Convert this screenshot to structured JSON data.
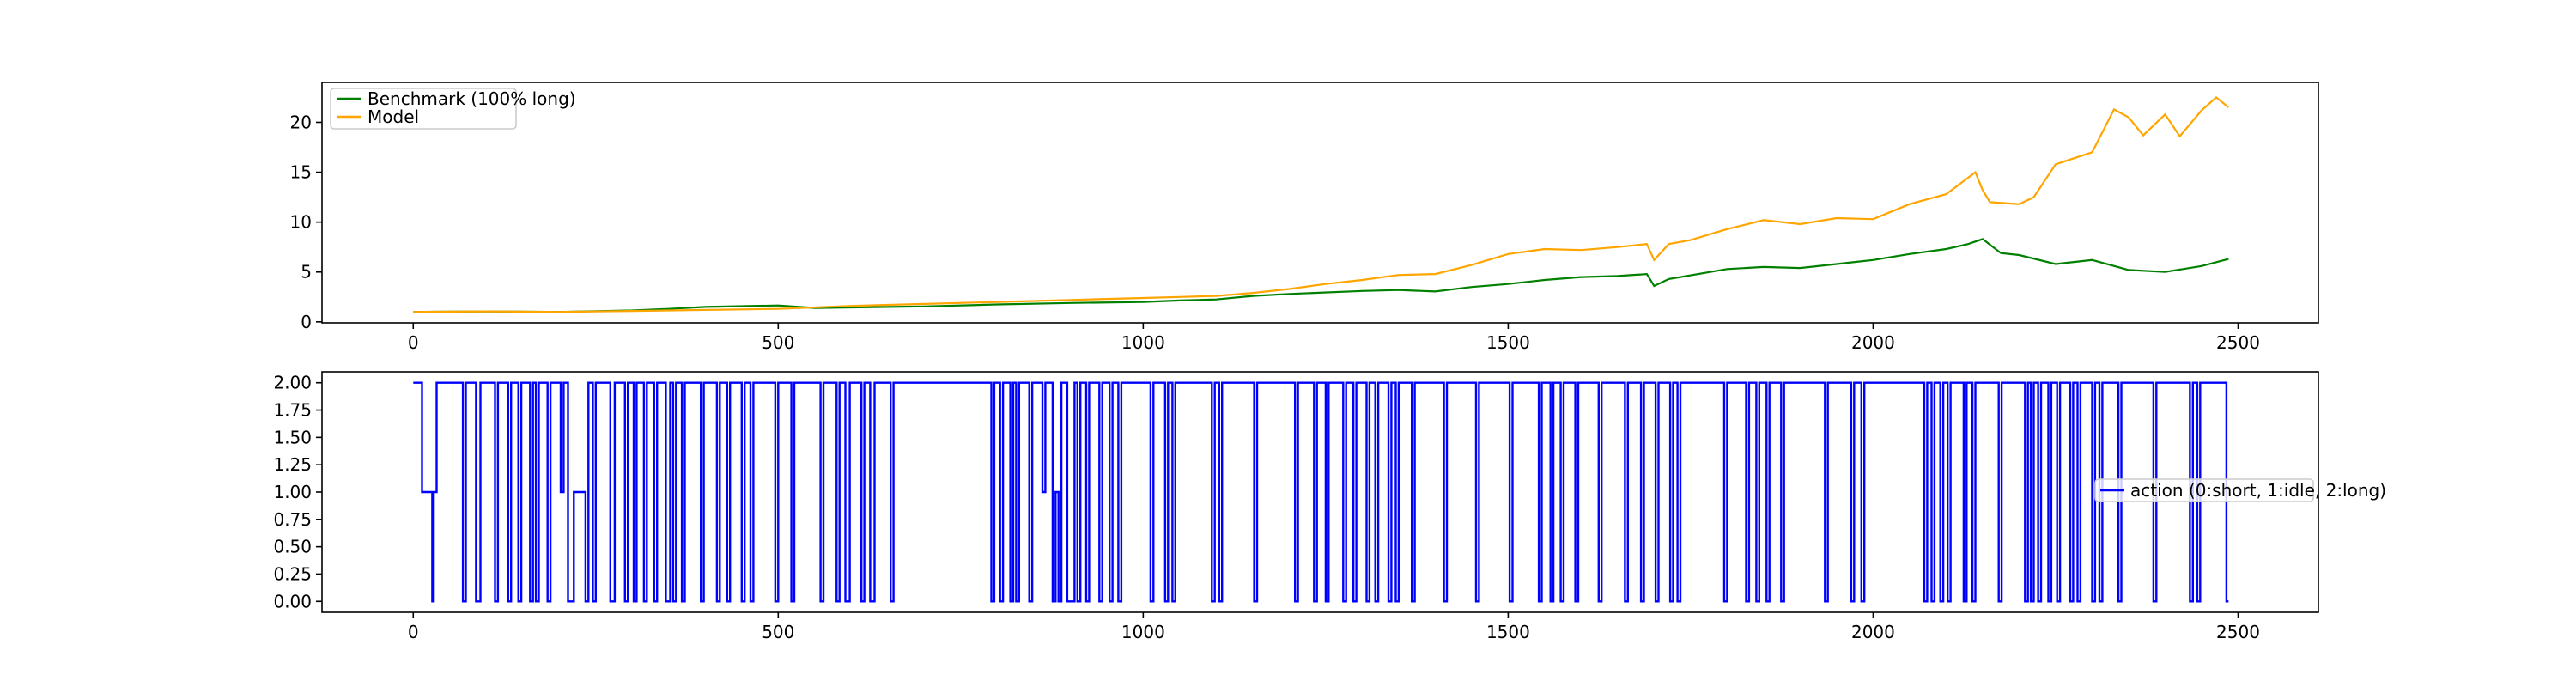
{
  "colors": {
    "benchmark": "#008000",
    "model": "#ffa500",
    "action": "#0000ff"
  },
  "chart_data": [
    {
      "type": "line",
      "title": "",
      "xlabel": "",
      "ylabel": "",
      "xlim": [
        -125,
        2610
      ],
      "ylim": [
        -0.1,
        24.0
      ],
      "x_ticks": [
        0,
        500,
        1000,
        1500,
        2000,
        2500
      ],
      "y_ticks": [
        0,
        5,
        10,
        15,
        20
      ],
      "grid": false,
      "legend_location": "upper left",
      "series": [
        {
          "name": "Benchmark (100% long)",
          "color": "#008000",
          "x": [
            0,
            100,
            200,
            300,
            350,
            400,
            500,
            550,
            600,
            700,
            800,
            900,
            1000,
            1050,
            1100,
            1150,
            1200,
            1300,
            1350,
            1400,
            1450,
            1500,
            1550,
            1600,
            1650,
            1690,
            1700,
            1720,
            1800,
            1850,
            1900,
            1950,
            2000,
            2050,
            2100,
            2130,
            2150,
            2175,
            2200,
            2250,
            2300,
            2350,
            2400,
            2450,
            2487
          ],
          "y": [
            1.0,
            1.05,
            1.0,
            1.15,
            1.3,
            1.5,
            1.65,
            1.4,
            1.45,
            1.55,
            1.75,
            1.9,
            2.0,
            2.15,
            2.25,
            2.6,
            2.8,
            3.1,
            3.2,
            3.05,
            3.5,
            3.8,
            4.2,
            4.5,
            4.6,
            4.8,
            3.6,
            4.3,
            5.3,
            5.5,
            5.4,
            5.8,
            6.2,
            6.8,
            7.3,
            7.8,
            8.3,
            6.9,
            6.7,
            5.8,
            6.2,
            5.2,
            5.0,
            5.6,
            6.3
          ]
        },
        {
          "name": "Model",
          "color": "#ffa500",
          "x": [
            0,
            100,
            200,
            300,
            400,
            500,
            600,
            700,
            800,
            900,
            1000,
            1050,
            1100,
            1150,
            1200,
            1250,
            1300,
            1350,
            1400,
            1450,
            1500,
            1550,
            1600,
            1650,
            1690,
            1700,
            1720,
            1750,
            1800,
            1850,
            1900,
            1950,
            2000,
            2050,
            2100,
            2140,
            2150,
            2160,
            2200,
            2220,
            2250,
            2300,
            2330,
            2350,
            2370,
            2400,
            2420,
            2450,
            2470,
            2487
          ],
          "y": [
            1.0,
            1.05,
            1.0,
            1.1,
            1.2,
            1.3,
            1.6,
            1.8,
            2.0,
            2.2,
            2.4,
            2.5,
            2.6,
            2.9,
            3.3,
            3.8,
            4.2,
            4.7,
            4.8,
            5.7,
            6.8,
            7.3,
            7.2,
            7.5,
            7.8,
            6.2,
            7.8,
            8.2,
            9.3,
            10.2,
            9.8,
            10.4,
            10.3,
            11.8,
            12.8,
            15.0,
            13.2,
            12.0,
            11.8,
            12.5,
            15.8,
            17.0,
            21.3,
            20.5,
            18.7,
            20.8,
            18.6,
            21.2,
            22.5,
            21.5
          ]
        }
      ]
    },
    {
      "type": "line",
      "title": "",
      "xlabel": "",
      "ylabel": "",
      "xlim": [
        -125,
        2610
      ],
      "ylim": [
        -0.1,
        2.1
      ],
      "x_ticks": [
        0,
        500,
        1000,
        1500,
        2000,
        2500
      ],
      "y_ticks": [
        "0.00",
        "0.25",
        "0.50",
        "0.75",
        "1.00",
        "1.25",
        "1.50",
        "1.75",
        "2.00"
      ],
      "grid": false,
      "legend_location": "center right",
      "series": [
        {
          "name": "action (0:short, 1:idle, 2:long)",
          "color": "#0000ff",
          "step": true,
          "x": [
            0,
            12,
            26,
            28,
            32,
            68,
            72,
            86,
            92,
            112,
            116,
            130,
            134,
            144,
            148,
            160,
            164,
            168,
            172,
            184,
            188,
            202,
            206,
            212,
            220,
            236,
            240,
            246,
            250,
            270,
            276,
            290,
            294,
            302,
            306,
            316,
            320,
            330,
            334,
            346,
            352,
            356,
            360,
            368,
            372,
            394,
            398,
            416,
            420,
            430,
            434,
            450,
            454,
            462,
            466,
            496,
            500,
            518,
            522,
            558,
            562,
            580,
            584,
            592,
            598,
            614,
            618,
            626,
            632,
            654,
            658,
            792,
            796,
            804,
            808,
            818,
            822,
            826,
            830,
            844,
            848,
            862,
            866,
            876,
            880,
            884,
            888,
            896,
            906,
            910,
            914,
            922,
            926,
            940,
            944,
            954,
            958,
            966,
            970,
            1010,
            1014,
            1030,
            1034,
            1040,
            1044,
            1094,
            1098,
            1104,
            1108,
            1152,
            1156,
            1208,
            1212,
            1234,
            1238,
            1250,
            1254,
            1274,
            1278,
            1288,
            1292,
            1306,
            1310,
            1318,
            1322,
            1336,
            1340,
            1346,
            1350,
            1368,
            1372,
            1412,
            1416,
            1456,
            1460,
            1502,
            1506,
            1542,
            1546,
            1558,
            1562,
            1572,
            1576,
            1592,
            1596,
            1624,
            1628,
            1660,
            1664,
            1682,
            1686,
            1702,
            1706,
            1722,
            1726,
            1732,
            1736,
            1796,
            1800,
            1826,
            1830,
            1840,
            1844,
            1854,
            1858,
            1874,
            1878,
            1934,
            1938,
            1970,
            1974,
            1984,
            1988,
            2070,
            2074,
            2080,
            2084,
            2092,
            2096,
            2102,
            2106,
            2124,
            2128,
            2136,
            2140,
            2172,
            2176,
            2208,
            2212,
            2216,
            2220,
            2226,
            2230,
            2240,
            2244,
            2252,
            2256,
            2270,
            2274,
            2280,
            2284,
            2300,
            2304,
            2310,
            2314,
            2336,
            2340,
            2384,
            2388,
            2434,
            2438,
            2444,
            2448,
            2484,
            2487
          ],
          "y": [
            2,
            1,
            0,
            1,
            2,
            0,
            2,
            0,
            2,
            0,
            2,
            0,
            2,
            0,
            2,
            0,
            2,
            0,
            2,
            0,
            2,
            1,
            2,
            0,
            1,
            0,
            2,
            0,
            2,
            0,
            2,
            0,
            2,
            0,
            2,
            0,
            2,
            0,
            2,
            0,
            2,
            0,
            2,
            0,
            2,
            0,
            2,
            0,
            2,
            0,
            2,
            0,
            2,
            0,
            2,
            0,
            2,
            0,
            2,
            0,
            2,
            0,
            2,
            0,
            2,
            0,
            2,
            0,
            2,
            0,
            2,
            0,
            2,
            0,
            2,
            0,
            2,
            0,
            2,
            0,
            2,
            1,
            2,
            0,
            1,
            0,
            2,
            0,
            2,
            0,
            2,
            0,
            2,
            0,
            2,
            0,
            2,
            0,
            2,
            0,
            2,
            0,
            2,
            0,
            2,
            0,
            2,
            0,
            2,
            0,
            2,
            0,
            2,
            0,
            2,
            0,
            2,
            0,
            2,
            0,
            2,
            0,
            2,
            0,
            2,
            0,
            2,
            0,
            2,
            0,
            2,
            0,
            2,
            0,
            2,
            0,
            2,
            0,
            2,
            0,
            2,
            0,
            2,
            0,
            2,
            0,
            2,
            0,
            2,
            0,
            2,
            0,
            2,
            0,
            2,
            0,
            2,
            0,
            2,
            0,
            2,
            0,
            2,
            0,
            2,
            0,
            2,
            0,
            2,
            0,
            2,
            0,
            2,
            0,
            2,
            0,
            2,
            0,
            2,
            0,
            2,
            0,
            2,
            0,
            2,
            0,
            2,
            0,
            2,
            0,
            2,
            0,
            2,
            0,
            2,
            0,
            2,
            0,
            2,
            0,
            2,
            0,
            2,
            0,
            2,
            0,
            2,
            0,
            2,
            0,
            2,
            0,
            2,
            0,
            0
          ]
        }
      ]
    }
  ]
}
